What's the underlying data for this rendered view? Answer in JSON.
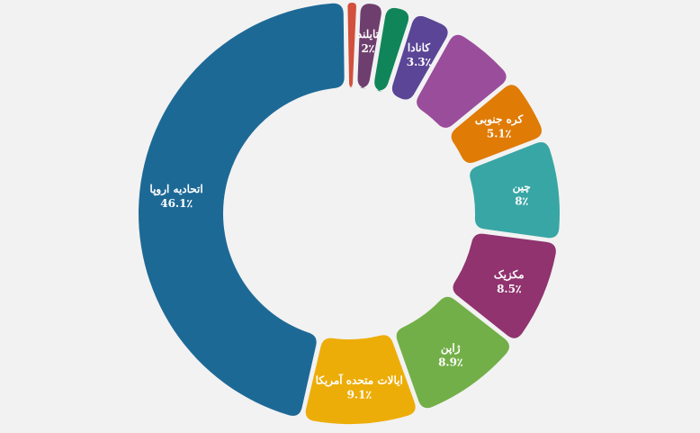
{
  "chart_data": {
    "type": "pie",
    "variant": "donut",
    "title": "",
    "slices": [
      {
        "label": "",
        "value": 1.0,
        "pct_text": "",
        "color": "#d2503c"
      },
      {
        "label": "تایلند",
        "value": 2.0,
        "pct_text": "2٪",
        "color": "#6e3f6e"
      },
      {
        "label": "",
        "value": 2.2,
        "pct_text": "",
        "color": "#11855a"
      },
      {
        "label": "کانادا",
        "value": 3.3,
        "pct_text": "3.3٪",
        "color": "#5a4596"
      },
      {
        "label": "",
        "value": 5.8,
        "pct_text": "",
        "color": "#9a4d9b"
      },
      {
        "label": "کره جنوبی",
        "value": 5.1,
        "pct_text": "5.1٪",
        "color": "#e07b06"
      },
      {
        "label": "چین",
        "value": 8.0,
        "pct_text": "8٪",
        "color": "#38a6a5"
      },
      {
        "label": "مکزیک",
        "value": 8.5,
        "pct_text": "8.5٪",
        "color": "#90336e"
      },
      {
        "label": "ژاپن",
        "value": 8.9,
        "pct_text": "8.9٪",
        "color": "#73af48"
      },
      {
        "label": "ایالات متحده آمریکا",
        "value": 9.1,
        "pct_text": "9.1٪",
        "color": "#edad08"
      },
      {
        "label": "اتحادیه اروپا",
        "value": 46.1,
        "pct_text": "46.1٪",
        "color": "#1d6996"
      }
    ],
    "unit": "٪"
  }
}
